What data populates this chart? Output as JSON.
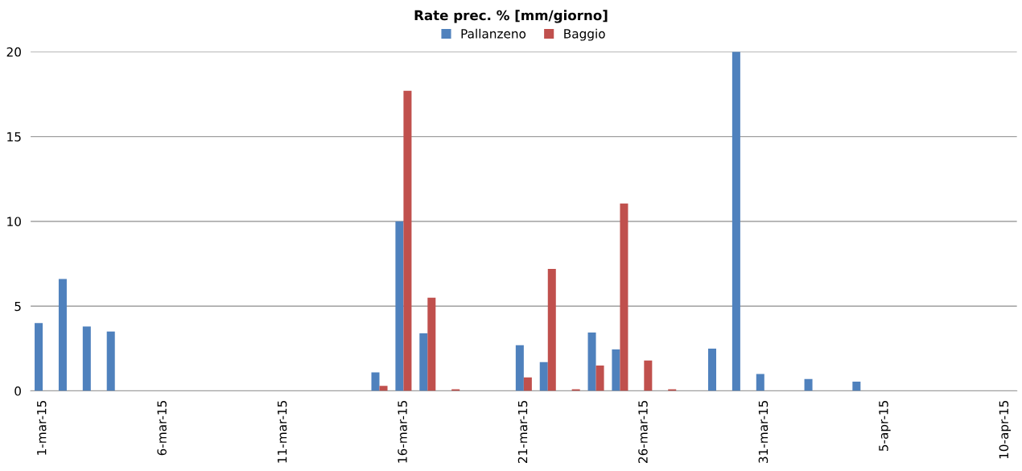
{
  "chart_data": {
    "type": "bar",
    "title": "Rate prec. % [mm/giorno]",
    "categories": [
      "1-mar-15",
      null,
      null,
      null,
      null,
      "6-mar-15",
      null,
      null,
      null,
      null,
      "11-mar-15",
      null,
      null,
      null,
      null,
      "16-mar-15",
      null,
      null,
      null,
      null,
      "21-mar-15",
      null,
      null,
      null,
      null,
      "26-mar-15",
      null,
      null,
      null,
      null,
      "31-mar-15",
      null,
      null,
      null,
      null,
      "5-apr-15",
      null,
      null,
      null,
      null,
      "10-apr-15"
    ],
    "series": [
      {
        "name": "Pallanzeno",
        "color": "#4f81bd",
        "values": [
          4.0,
          6.6,
          3.8,
          3.5,
          0,
          0,
          0,
          0,
          0,
          0,
          0,
          0,
          0,
          0,
          1.1,
          10.0,
          3.4,
          0,
          0,
          0,
          2.7,
          1.7,
          0,
          3.45,
          2.45,
          0,
          0,
          0,
          2.5,
          20.0,
          1.0,
          0,
          0.7,
          0,
          0.55,
          0,
          0,
          0,
          0,
          0,
          0
        ]
      },
      {
        "name": "Baggio",
        "color": "#c0504d",
        "values": [
          0,
          0,
          0,
          0,
          0,
          0,
          0,
          0,
          0,
          0,
          0,
          0,
          0,
          0,
          0.3,
          17.7,
          5.5,
          0.1,
          0,
          0,
          0.8,
          7.2,
          0.1,
          1.5,
          11.05,
          1.8,
          0.1,
          0,
          0,
          0,
          0,
          0,
          0,
          0,
          0,
          0,
          0,
          0,
          0,
          0,
          0
        ]
      }
    ],
    "ylim": [
      0,
      20
    ],
    "yticks": [
      0,
      5,
      10,
      15,
      20
    ],
    "grid": "y",
    "legend": "top"
  }
}
